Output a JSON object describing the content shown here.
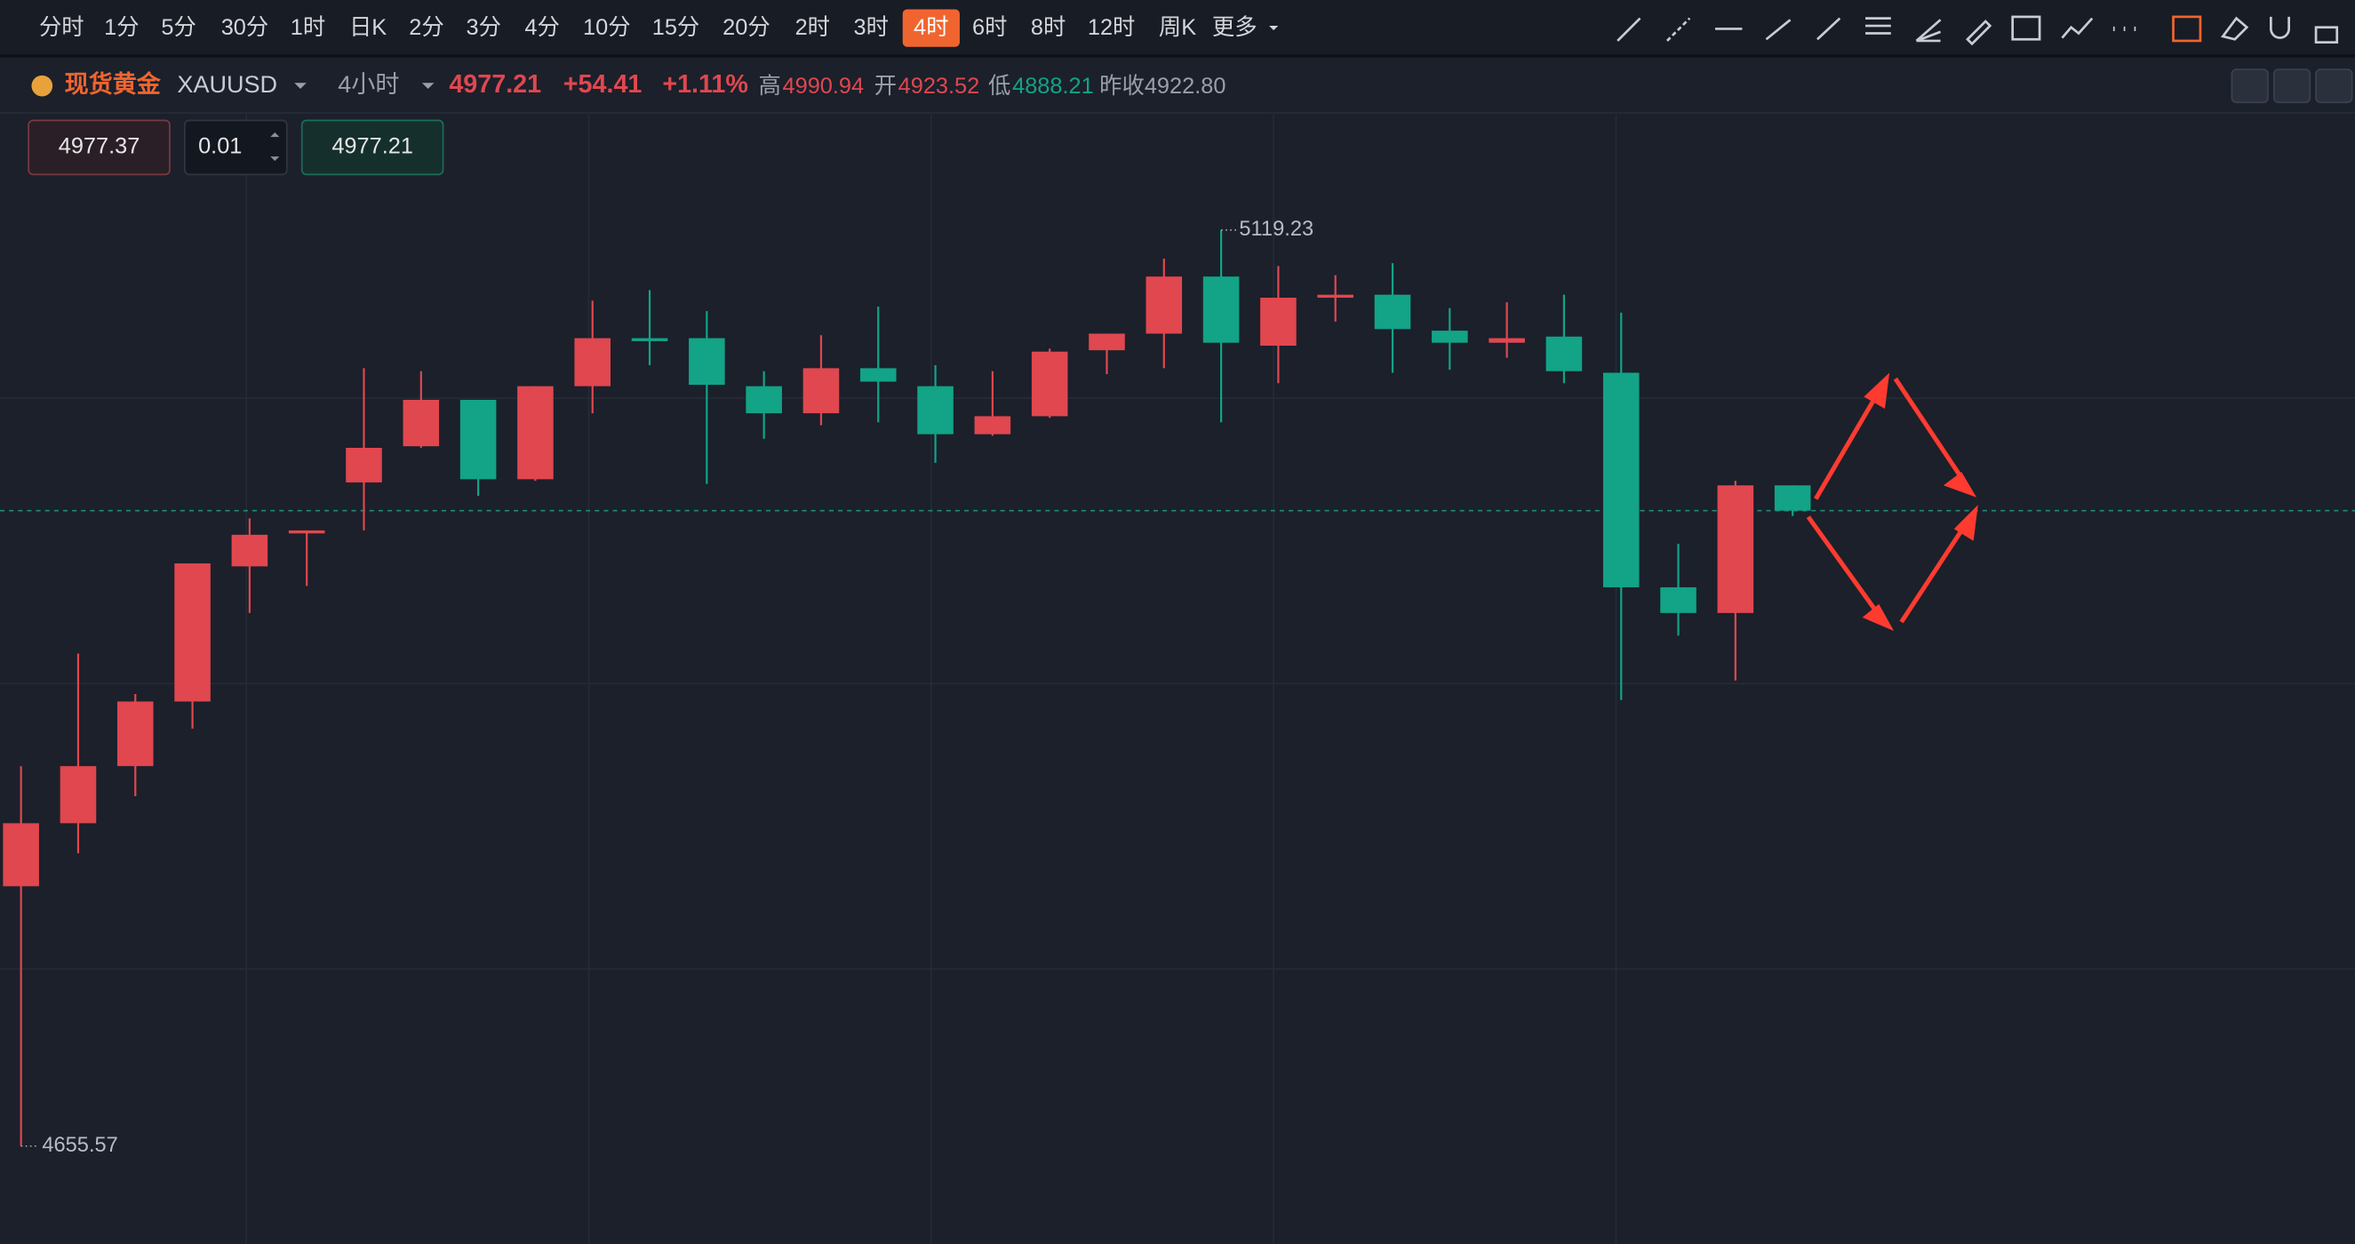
{
  "toolbar": {
    "timeframes": [
      "分时",
      "1分",
      "5分",
      "30分",
      "1时",
      "日K",
      "2分",
      "3分",
      "4分",
      "10分",
      "15分",
      "20分",
      "2时",
      "3时",
      "4时",
      "6时",
      "8时",
      "12时",
      "周K",
      "更多"
    ]
  },
  "header": {
    "name": "现货黄金",
    "symbol": "XAUUSD",
    "period": "4小时",
    "price": "4977.21",
    "change": "+54.41",
    "change_pct": "+1.11%",
    "high_label": "高",
    "high": "4990.94",
    "open_label": "开",
    "open": "4923.52",
    "low_label": "低",
    "low": "4888.21",
    "prev_close_label": "昨收",
    "prev_close": "4922.80"
  },
  "order": {
    "ask": "4977.37",
    "quantity": "0.01",
    "bid": "4977.21"
  },
  "chart_data": {
    "type": "candlestick",
    "up_color": "#e0474f",
    "down_color": "#13a387",
    "current_price": 4977.21,
    "open": [
      4787.1,
      4819.0,
      4847.9,
      4880.6,
      4949.0,
      4965.7,
      4991.5,
      5009.8,
      5033.3,
      4993.1,
      5040.2,
      5064.5,
      5064.5,
      5040.2,
      5026.5,
      5049.3,
      5040.2,
      5015.9,
      5025.0,
      5058.4,
      5066.8,
      5095.7,
      5060.7,
      5085.0,
      5086.5,
      5068.3,
      5062.2,
      5065.3,
      5047.0,
      4938.4,
      4925.4,
      4990.0
    ],
    "high": [
      4847.9,
      4904.9,
      4884.4,
      4950.5,
      4973.3,
      4967.2,
      5049.3,
      5047.8,
      5033.3,
      5040.2,
      5083.5,
      5088.8,
      5078.2,
      5047.8,
      5066.0,
      5080.5,
      5050.8,
      5047.8,
      5059.2,
      5066.8,
      5104.8,
      5119.23,
      5101.0,
      5096.4,
      5102.5,
      5079.7,
      5082.7,
      5086.5,
      5077.4,
      4960.4,
      4992.3,
      4990.0
    ],
    "low": [
      4655.57,
      4803.8,
      4832.7,
      4866.9,
      4925.4,
      4939.1,
      4967.2,
      5009.0,
      4984.7,
      4992.3,
      5026.5,
      5050.8,
      4990.8,
      5013.6,
      5020.4,
      5021.9,
      5001.4,
      5015.1,
      5024.2,
      5046.3,
      5049.3,
      5021.9,
      5041.7,
      5072.9,
      5047.0,
      5048.5,
      5054.6,
      5041.7,
      4881.3,
      4914.0,
      4891.2,
      4974.5
    ],
    "close": [
      4819.0,
      4847.9,
      4880.6,
      4950.5,
      4965.0,
      4967.2,
      5009.0,
      5033.3,
      4993.1,
      5040.2,
      5064.5,
      5063.0,
      5040.9,
      5026.5,
      5049.3,
      5042.5,
      5015.9,
      5025.0,
      5057.7,
      5066.8,
      5095.7,
      5062.2,
      5085.0,
      5086.5,
      5069.1,
      5062.2,
      5064.5,
      5047.8,
      4938.4,
      4925.4,
      4990.0,
      4977.21
    ]
  }
}
